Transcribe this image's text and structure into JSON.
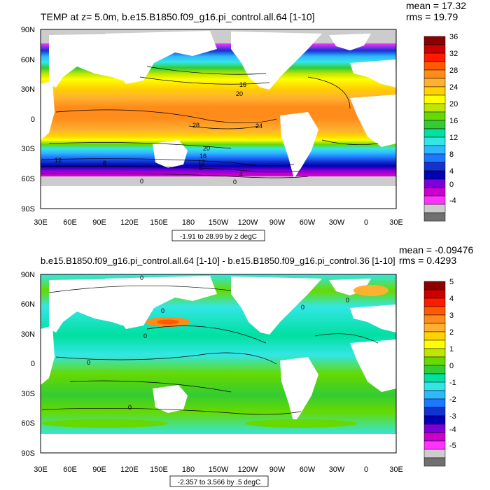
{
  "panels": [
    {
      "title": "TEMP at z=   5.0m, b.e15.B1850.f09_g16.pi_control.all.64 [1-10]",
      "stats": {
        "mean": "mean = 17.32",
        "rms": "rms = 19.79"
      },
      "range_label": "-1.91 to 28.99 by 2 degC",
      "lat_labels": [
        "90N",
        "60N",
        "30N",
        "0",
        "30S",
        "60S",
        "90S"
      ],
      "lon_labels": [
        "30E",
        "60E",
        "90E",
        "120E",
        "150E",
        "180",
        "150W",
        "120W",
        "90W",
        "60W",
        "30W",
        "0",
        "30E"
      ],
      "colorbar": {
        "labels": [
          "36",
          "32",
          "28",
          "24",
          "20",
          "16",
          "12",
          "8",
          "4",
          "0",
          "-4"
        ],
        "colors": [
          "#8b0000",
          "#cc0000",
          "#ff1a00",
          "#ff5a00",
          "#ff8c1a",
          "#ffb030",
          "#ffd200",
          "#ffff00",
          "#bfe600",
          "#66d900",
          "#33cc33",
          "#00e0a0",
          "#33e6e6",
          "#2fb8ff",
          "#1e78ff",
          "#1432d2",
          "#0000b4",
          "#7b00d9",
          "#cc00cc",
          "#ff33ff",
          "#cccccc",
          "#707070"
        ]
      },
      "contour_labels": [
        "16",
        "20",
        "28",
        "24",
        "20",
        "16",
        "12",
        "12",
        "8",
        "8",
        "4",
        "0",
        "0"
      ]
    },
    {
      "title": "b.e15.B1850.f09_g16.pi_control.all.64 [1-10] - b.e15.B1850.f09_g16.pi_control.36 [1-10]",
      "stats": {
        "mean": "mean = -0.09476",
        "rms": "rms = 0.4293"
      },
      "range_label": "-2.357 to 3.566 by .5 degC",
      "lat_labels": [
        "90N",
        "60N",
        "30N",
        "0",
        "30S",
        "60S",
        "90S"
      ],
      "lon_labels": [
        "30E",
        "60E",
        "90E",
        "120E",
        "150E",
        "180",
        "150W",
        "120W",
        "90W",
        "60W",
        "30W",
        "0",
        "30E"
      ],
      "colorbar": {
        "labels": [
          "5",
          "4",
          "3",
          "2",
          "1",
          "0",
          "-1",
          "-2",
          "-3",
          "-4",
          "-5"
        ],
        "colors": [
          "#8b0000",
          "#cc0000",
          "#ff1a00",
          "#ff5a00",
          "#ff8c1a",
          "#ffb030",
          "#ffd200",
          "#ffff00",
          "#bfe600",
          "#66d900",
          "#33cc33",
          "#00e0a0",
          "#33e6e6",
          "#2fb8ff",
          "#1e78ff",
          "#1432d2",
          "#0000b4",
          "#7b00d9",
          "#cc00cc",
          "#ff33ff",
          "#cccccc",
          "#707070"
        ]
      },
      "contour_labels": [
        "0",
        "0",
        "0",
        "0",
        "0",
        "0",
        "0"
      ]
    }
  ]
}
